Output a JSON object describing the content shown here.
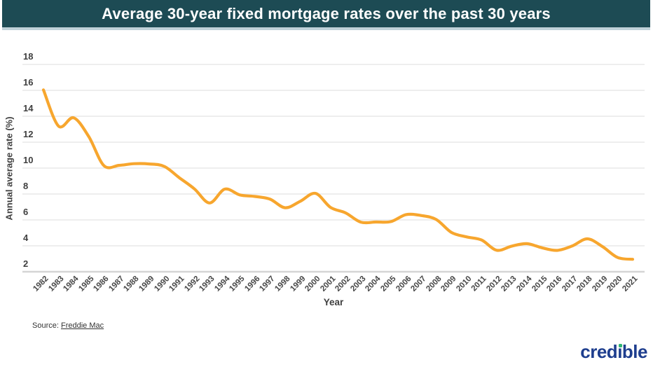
{
  "header": {
    "title": "Average 30-year fixed mortgage rates over the past 30 years"
  },
  "chart_data": {
    "type": "line",
    "title": "Average 30-year fixed mortgage rates over the past 30 years",
    "xlabel": "Year",
    "ylabel": "Annual average rate (%)",
    "ylim": [
      2,
      18
    ],
    "y_ticks": [
      18,
      16,
      14,
      12,
      10,
      8,
      6,
      4,
      2
    ],
    "grid": true,
    "legend_position": "none",
    "line_color": "#F7A62E",
    "categories": [
      "1982",
      "1983",
      "1984",
      "1985",
      "1986",
      "1987",
      "1988",
      "1989",
      "1990",
      "1991",
      "1992",
      "1993",
      "1994",
      "1995",
      "1996",
      "1997",
      "1998",
      "1999",
      "2000",
      "2001",
      "2002",
      "2003",
      "2004",
      "2005",
      "2006",
      "2007",
      "2008",
      "2009",
      "2010",
      "2011",
      "2012",
      "2013",
      "2014",
      "2015",
      "2016",
      "2017",
      "2018",
      "2019",
      "2020",
      "2021"
    ],
    "series": [
      {
        "name": "30-year fixed mortgage rate",
        "values": [
          16.04,
          13.24,
          13.88,
          12.43,
          10.19,
          10.21,
          10.34,
          10.32,
          10.13,
          9.25,
          8.39,
          7.31,
          8.38,
          7.93,
          7.81,
          7.6,
          6.94,
          7.44,
          8.05,
          6.97,
          6.54,
          5.83,
          5.84,
          5.87,
          6.41,
          6.34,
          6.03,
          5.04,
          4.69,
          4.45,
          3.66,
          3.98,
          4.17,
          3.85,
          3.65,
          3.99,
          4.54,
          3.94,
          3.1,
          2.96
        ]
      }
    ]
  },
  "footer": {
    "source_prefix": "Source:",
    "source_link": "Freddie Mac",
    "brand_pre": "cred",
    "brand_i": "ı",
    "brand_post": "ble"
  },
  "colors": {
    "header_bg": "#1d4b54",
    "header_border": "#bfd2d9",
    "line": "#F7A62E",
    "gridline": "#e3e3e3",
    "axis_line": "#d5d5d5",
    "label_text": "#3f3f3f",
    "brand_navy": "#1e3e8e",
    "brand_green": "#2eb572"
  }
}
